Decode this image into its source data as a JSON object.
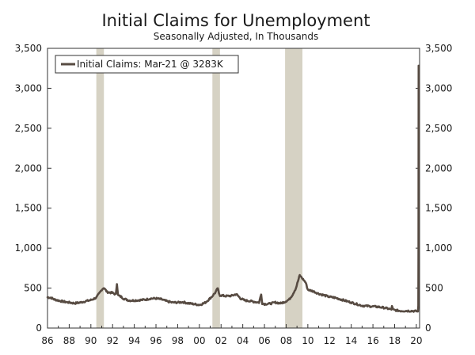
{
  "chart_data": {
    "type": "line",
    "title": "Initial Claims for Unemployment",
    "subtitle": "Seasonally Adjusted, In Thousands",
    "xlabel": "",
    "ylabel": "",
    "xlim": [
      1986,
      2020.3
    ],
    "ylim": [
      0,
      3500
    ],
    "x_tick_values": [
      1986,
      1988,
      1990,
      1992,
      1994,
      1996,
      1998,
      2000,
      2002,
      2004,
      2006,
      2008,
      2010,
      2012,
      2014,
      2016,
      2018,
      2020
    ],
    "x_tick_labels": [
      "86",
      "88",
      "90",
      "92",
      "94",
      "96",
      "98",
      "00",
      "02",
      "04",
      "06",
      "08",
      "10",
      "12",
      "14",
      "16",
      "18",
      "20"
    ],
    "y_tick_values": [
      0,
      500,
      1000,
      1500,
      2000,
      2500,
      3000,
      3500
    ],
    "y_tick_labels": [
      "0",
      "500",
      "1,000",
      "1,500",
      "2,000",
      "2,500",
      "3,000",
      "3,500"
    ],
    "y_tick_labels_right": [
      "0",
      "500",
      "1,000",
      "1,500",
      "2,000",
      "2,500",
      "3,000",
      "3,500"
    ],
    "grid": false,
    "legend_position": "top-left",
    "recessions": [
      [
        1990.5,
        1991.2
      ],
      [
        2001.2,
        2001.9
      ],
      [
        2007.9,
        2009.5
      ]
    ],
    "series": [
      {
        "name": "Initial Claims: Mar-21 @ 3283K",
        "color": "#574b42",
        "x": [
          1986.0,
          1986.3,
          1986.6,
          1987.0,
          1987.5,
          1988.0,
          1988.5,
          1989.0,
          1989.5,
          1990.0,
          1990.5,
          1990.8,
          1991.0,
          1991.2,
          1991.5,
          1992.0,
          1992.3,
          1992.4,
          1992.5,
          1992.8,
          1993.0,
          1993.5,
          1994.0,
          1994.5,
          1995.0,
          1995.5,
          1996.0,
          1996.5,
          1997.0,
          1997.5,
          1998.0,
          1998.5,
          1999.0,
          1999.5,
          2000.0,
          2000.5,
          2000.9,
          2001.2,
          2001.5,
          2001.7,
          2001.8,
          2001.9,
          2002.2,
          2002.5,
          2003.0,
          2003.4,
          2003.8,
          2004.2,
          2004.6,
          2005.0,
          2005.5,
          2005.7,
          2005.8,
          2006.0,
          2006.5,
          2007.0,
          2007.5,
          2007.9,
          2008.3,
          2008.6,
          2008.9,
          2009.1,
          2009.25,
          2009.5,
          2009.8,
          2010.0,
          2010.5,
          2011.0,
          2011.5,
          2012.0,
          2012.5,
          2013.0,
          2013.5,
          2014.0,
          2014.5,
          2015.0,
          2015.5,
          2016.0,
          2016.5,
          2017.0,
          2017.5,
          2017.7,
          2017.75,
          2017.85,
          2018.0,
          2018.5,
          2019.0,
          2019.5,
          2020.0,
          2020.15,
          2020.18,
          2020.2,
          2020.21
        ],
        "values": [
          385,
          380,
          360,
          345,
          330,
          320,
          310,
          320,
          335,
          350,
          380,
          440,
          480,
          505,
          450,
          440,
          420,
          560,
          410,
          390,
          370,
          345,
          345,
          350,
          355,
          370,
          370,
          360,
          335,
          320,
          320,
          325,
          310,
          300,
          290,
          315,
          360,
          400,
          450,
          500,
          430,
          410,
          405,
          400,
          405,
          425,
          370,
          345,
          340,
          330,
          320,
          420,
          310,
          300,
          305,
          320,
          310,
          330,
          360,
          420,
          500,
          590,
          660,
          620,
          570,
          480,
          460,
          430,
          410,
          390,
          380,
          360,
          340,
          320,
          300,
          280,
          275,
          270,
          265,
          255,
          240,
          230,
          280,
          230,
          225,
          215,
          215,
          215,
          210,
          215,
          280,
          1000,
          3283
        ]
      }
    ]
  }
}
